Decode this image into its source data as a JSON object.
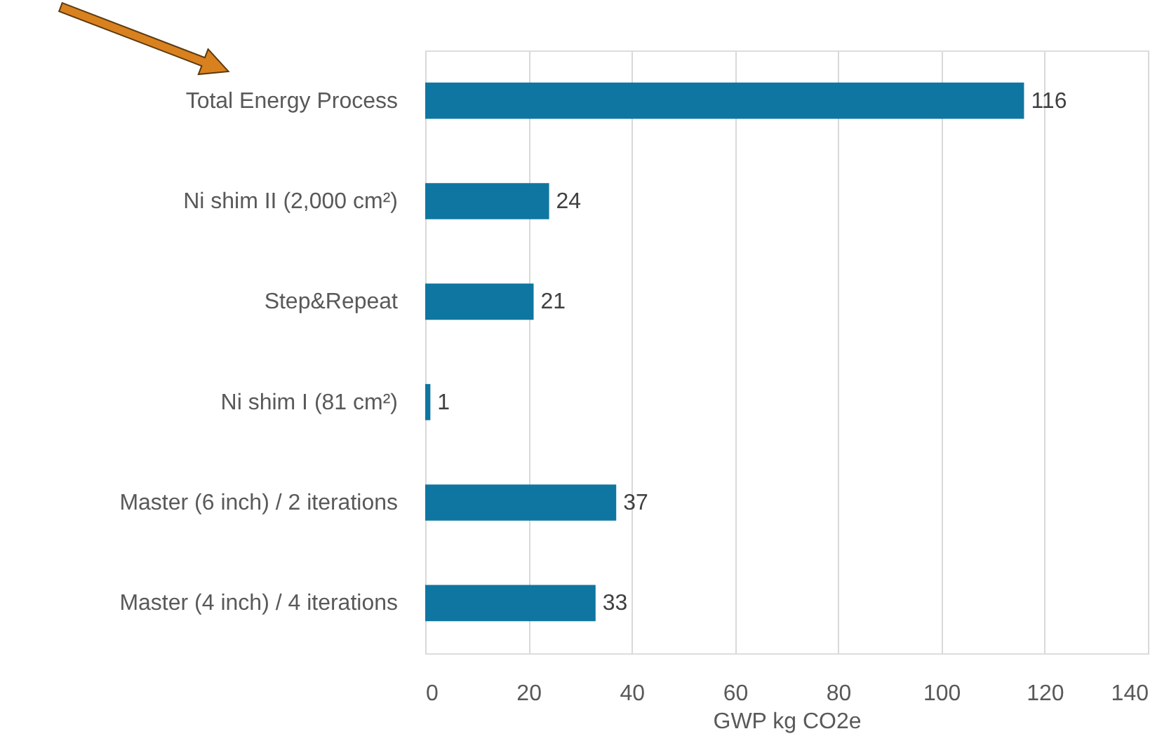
{
  "chart_data": {
    "type": "bar",
    "orientation": "horizontal",
    "xlabel": "GWP kg CO2e",
    "categories": [
      "Total Energy Process",
      "Ni shim II (2,000 cm²)",
      "Step&Repeat",
      "Ni shim I (81 cm²)",
      "Master (6 inch) / 2 iterations",
      "Master (4 inch) / 4 iterations"
    ],
    "values": [
      116,
      24,
      21,
      1,
      37,
      33
    ],
    "color": "#0e76a0",
    "xlim": [
      0,
      140
    ],
    "xticks": [
      0,
      20,
      40,
      60,
      80,
      100,
      120,
      140
    ],
    "grid": "x",
    "data_labels": true
  }
}
